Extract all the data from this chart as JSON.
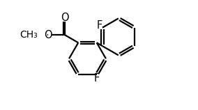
{
  "bg_color": "#ffffff",
  "bond_color": "#000000",
  "bond_lw": 1.6,
  "font_size": 10.5,
  "xlim": [
    0.0,
    8.5
  ],
  "ylim": [
    0.0,
    9.0
  ]
}
